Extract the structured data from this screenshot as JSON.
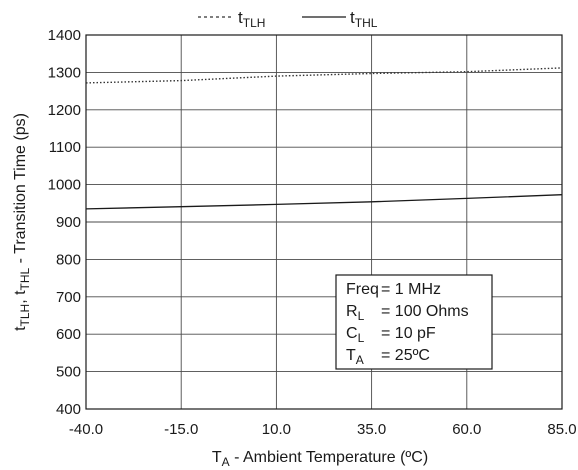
{
  "chart_data": {
    "type": "line",
    "xlabel": {
      "main": "T",
      "sub": "A",
      "rest": " - Ambient Temperature (",
      "unit": "ºC",
      "close": ")"
    },
    "ylabel": {
      "p1": "t",
      "s1": "TLH",
      "p2": ", t",
      "s2": "THL",
      "rest": " - Transition Time (ps)"
    },
    "x_ticks": [
      "-40.0",
      "-15.0",
      "10.0",
      "35.0",
      "60.0",
      "85.0"
    ],
    "y_ticks": [
      "400",
      "500",
      "600",
      "700",
      "800",
      "900",
      "1000",
      "1100",
      "1200",
      "1300",
      "1400"
    ],
    "xlim": [
      -40,
      85
    ],
    "ylim": [
      400,
      1400
    ],
    "grid": true,
    "legend_position": "top-center",
    "series": [
      {
        "name": {
          "main": "t",
          "sub": "TLH"
        },
        "style": "dotted",
        "x": [
          -40,
          -15,
          10,
          35,
          60,
          85
        ],
        "y": [
          1272,
          1278,
          1290,
          1297,
          1302,
          1312
        ]
      },
      {
        "name": {
          "main": "t",
          "sub": "THL"
        },
        "style": "solid",
        "x": [
          -40,
          -15,
          10,
          35,
          60,
          85
        ],
        "y": [
          935,
          941,
          947,
          954,
          963,
          973
        ]
      }
    ],
    "annotation": [
      {
        "main": "Freq",
        "sub": "",
        "value": "= 1 MHz"
      },
      {
        "main": "R",
        "sub": "L",
        "value": "= 100 Ohms"
      },
      {
        "main": "C",
        "sub": "L",
        "value": "= 10 pF"
      },
      {
        "main": "T",
        "sub": "A",
        "value": "= 25ºC"
      }
    ]
  }
}
